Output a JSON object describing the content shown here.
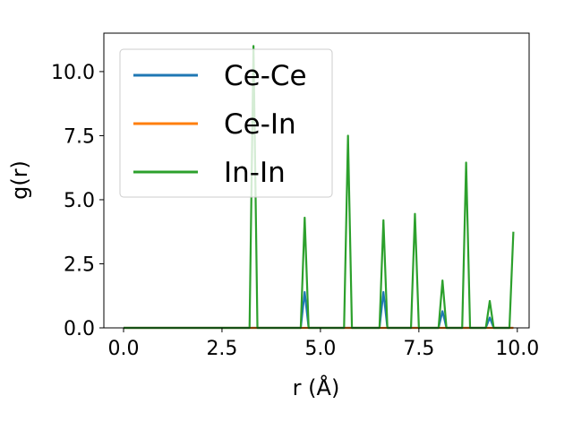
{
  "chart_data": {
    "type": "line",
    "xlabel": "r (Å)",
    "ylabel": "g(r)",
    "xlim": [
      -0.5,
      10.3
    ],
    "ylim": [
      0,
      11.5
    ],
    "xticks": [
      0.0,
      2.5,
      5.0,
      7.5,
      10.0
    ],
    "xtick_labels": [
      "0.0",
      "2.5",
      "5.0",
      "7.5",
      "10.0"
    ],
    "yticks": [
      0.0,
      2.5,
      5.0,
      7.5,
      10.0
    ],
    "ytick_labels": [
      "0.0",
      "2.5",
      "5.0",
      "7.5",
      "10.0"
    ],
    "grid": false,
    "legend_position": "top-left",
    "series": [
      {
        "name": "Ce-Ce",
        "color": "#1f77b4",
        "x": [
          0.0,
          4.5,
          4.6,
          4.7,
          6.5,
          6.6,
          6.7,
          8.0,
          8.1,
          8.2,
          9.2,
          9.3,
          9.4,
          9.9
        ],
        "y": [
          0.0,
          0.0,
          1.4,
          0.0,
          0.0,
          1.4,
          0.0,
          0.0,
          0.65,
          0.0,
          0.0,
          0.4,
          0.0,
          0.0
        ]
      },
      {
        "name": "Ce-In",
        "color": "#ff7f0e",
        "x": [
          0.0,
          9.9
        ],
        "y": [
          0.0,
          0.0
        ]
      },
      {
        "name": "In-In",
        "color": "#2ca02c",
        "x": [
          0.0,
          3.2,
          3.3,
          3.4,
          4.5,
          4.6,
          4.7,
          5.6,
          5.7,
          5.8,
          6.5,
          6.6,
          6.7,
          7.3,
          7.4,
          7.5,
          8.0,
          8.1,
          8.2,
          8.6,
          8.7,
          8.8,
          9.2,
          9.3,
          9.4,
          9.8,
          9.9
        ],
        "y": [
          0.0,
          0.0,
          11.0,
          0.0,
          0.0,
          4.3,
          0.0,
          0.0,
          7.5,
          0.0,
          0.0,
          4.2,
          0.0,
          0.0,
          4.45,
          0.0,
          0.0,
          1.85,
          0.0,
          0.0,
          6.45,
          0.0,
          0.0,
          1.05,
          0.0,
          0.0,
          3.75
        ]
      }
    ]
  }
}
